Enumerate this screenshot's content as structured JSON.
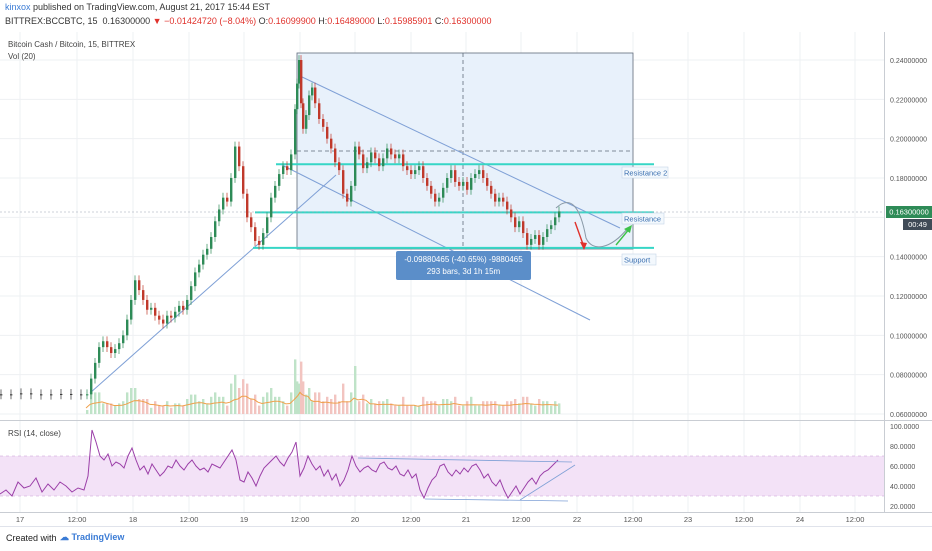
{
  "header": {
    "author": "kinxox",
    "published_text": " published on TradingView.com, August 21, 2017 15:44 EST",
    "symbol_line": "BITTREX:BCCBTC, 15",
    "last_price": "0.16300000",
    "change": "−0.01424720 (−8.04%)",
    "o_label": "O:",
    "o_value": "0.16099900",
    "h_label": "H:",
    "h_value": "0.16489000",
    "l_label": "L:",
    "l_value": "0.15985901",
    "c_label": "C:",
    "c_value": "0.16300000"
  },
  "legend": {
    "main_title": "Bitcoin Cash / Bitcoin, 15, BITTREX",
    "volume": "Vol (20)",
    "rsi": "RSI (14, close)"
  },
  "annotations": {
    "resistance2": "Resistance 2",
    "resistance": "Resistance",
    "support": "Support",
    "measure_line1": "-0.09880465 (-40.65%) -9880465",
    "measure_line2": "293 bars, 3d 1h 15m",
    "price_badge": "0.16300000",
    "time_badge": "00:49"
  },
  "footer": {
    "created_with": "Created with",
    "brand": "TradingView"
  },
  "colors": {
    "candle_up": "#2e8b57",
    "candle_down": "#c0392b",
    "level_line": "#36d6c6",
    "measure_box": "#e8f1fb",
    "badge": "#5b8ec9",
    "rsi_line": "#9b3fa8",
    "rsi_band": "#f3e2f7"
  },
  "chart_data": {
    "type": "line",
    "price_axis": {
      "ticks": [
        "0.24000000",
        "0.22000000",
        "0.20000000",
        "0.18000000",
        "0.16300000",
        "0.14000000",
        "0.12000000",
        "0.10000000",
        "0.08000000",
        "0.06000000"
      ],
      "ylim": [
        0.055,
        0.255
      ]
    },
    "rsi_axis": {
      "ticks": [
        "100.0000",
        "80.0000",
        "60.0000",
        "40.0000",
        "20.0000"
      ],
      "ylim": [
        15,
        100
      ]
    },
    "x_axis": {
      "ticks": [
        "17",
        "12:00",
        "18",
        "12:00",
        "19",
        "12:00",
        "20",
        "12:00",
        "21",
        "12:00",
        "22",
        "12:00",
        "23",
        "12:00",
        "24",
        "12:00"
      ]
    },
    "levels": {
      "resistance2": 0.187,
      "resistance": 0.1625,
      "support": 0.1445
    },
    "price_series": [
      [
        0,
        0.07
      ],
      [
        10,
        0.07
      ],
      [
        20,
        0.0705
      ],
      [
        30,
        0.07
      ],
      [
        40,
        0.0698
      ],
      [
        50,
        0.07
      ],
      [
        60,
        0.0702
      ],
      [
        70,
        0.0698
      ],
      [
        80,
        0.07
      ],
      [
        86,
        0.07
      ],
      [
        90,
        0.078
      ],
      [
        94,
        0.086
      ],
      [
        98,
        0.094
      ],
      [
        102,
        0.097
      ],
      [
        106,
        0.094
      ],
      [
        110,
        0.091
      ],
      [
        114,
        0.093
      ],
      [
        118,
        0.096
      ],
      [
        122,
        0.1
      ],
      [
        126,
        0.108
      ],
      [
        130,
        0.118
      ],
      [
        134,
        0.128
      ],
      [
        138,
        0.123
      ],
      [
        142,
        0.118
      ],
      [
        146,
        0.113
      ],
      [
        150,
        0.114
      ],
      [
        154,
        0.11
      ],
      [
        158,
        0.108
      ],
      [
        162,
        0.106
      ],
      [
        166,
        0.11
      ],
      [
        170,
        0.109
      ],
      [
        174,
        0.112
      ],
      [
        178,
        0.115
      ],
      [
        182,
        0.113
      ],
      [
        186,
        0.118
      ],
      [
        190,
        0.125
      ],
      [
        194,
        0.132
      ],
      [
        198,
        0.136
      ],
      [
        202,
        0.141
      ],
      [
        206,
        0.144
      ],
      [
        210,
        0.15
      ],
      [
        214,
        0.158
      ],
      [
        218,
        0.164
      ],
      [
        222,
        0.17
      ],
      [
        226,
        0.168
      ],
      [
        230,
        0.18
      ],
      [
        234,
        0.196
      ],
      [
        238,
        0.186
      ],
      [
        242,
        0.172
      ],
      [
        246,
        0.16
      ],
      [
        250,
        0.155
      ],
      [
        254,
        0.148
      ],
      [
        258,
        0.146
      ],
      [
        262,
        0.152
      ],
      [
        266,
        0.16
      ],
      [
        270,
        0.17
      ],
      [
        274,
        0.176
      ],
      [
        278,
        0.182
      ],
      [
        282,
        0.186
      ],
      [
        286,
        0.184
      ],
      [
        290,
        0.192
      ],
      [
        294,
        0.215
      ],
      [
        296,
        0.228
      ],
      [
        298,
        0.24
      ],
      [
        300,
        0.218
      ],
      [
        302,
        0.205
      ],
      [
        305,
        0.212
      ],
      [
        308,
        0.222
      ],
      [
        311,
        0.226
      ],
      [
        314,
        0.218
      ],
      [
        318,
        0.21
      ],
      [
        322,
        0.206
      ],
      [
        326,
        0.2
      ],
      [
        330,
        0.195
      ],
      [
        334,
        0.188
      ],
      [
        338,
        0.184
      ],
      [
        342,
        0.172
      ],
      [
        346,
        0.168
      ],
      [
        350,
        0.176
      ],
      [
        354,
        0.196
      ],
      [
        358,
        0.192
      ],
      [
        362,
        0.185
      ],
      [
        366,
        0.188
      ],
      [
        370,
        0.193
      ],
      [
        374,
        0.19
      ],
      [
        378,
        0.186
      ],
      [
        382,
        0.19
      ],
      [
        386,
        0.195
      ],
      [
        390,
        0.192
      ],
      [
        394,
        0.19
      ],
      [
        398,
        0.192
      ],
      [
        402,
        0.186
      ],
      [
        406,
        0.184
      ],
      [
        410,
        0.182
      ],
      [
        414,
        0.184
      ],
      [
        418,
        0.186
      ],
      [
        422,
        0.18
      ],
      [
        426,
        0.176
      ],
      [
        430,
        0.172
      ],
      [
        434,
        0.168
      ],
      [
        438,
        0.17
      ],
      [
        442,
        0.175
      ],
      [
        446,
        0.18
      ],
      [
        450,
        0.184
      ],
      [
        454,
        0.178
      ],
      [
        458,
        0.176
      ],
      [
        462,
        0.178
      ],
      [
        466,
        0.174
      ],
      [
        470,
        0.18
      ],
      [
        474,
        0.182
      ],
      [
        478,
        0.184
      ],
      [
        482,
        0.18
      ],
      [
        486,
        0.176
      ],
      [
        490,
        0.172
      ],
      [
        494,
        0.168
      ],
      [
        498,
        0.17
      ],
      [
        502,
        0.168
      ],
      [
        506,
        0.164
      ],
      [
        510,
        0.16
      ],
      [
        514,
        0.155
      ],
      [
        518,
        0.158
      ],
      [
        522,
        0.152
      ],
      [
        526,
        0.146
      ],
      [
        530,
        0.149
      ],
      [
        534,
        0.151
      ],
      [
        538,
        0.146
      ],
      [
        542,
        0.15
      ],
      [
        546,
        0.154
      ],
      [
        550,
        0.156
      ],
      [
        554,
        0.16
      ],
      [
        558,
        0.163
      ]
    ],
    "rsi_series": [
      [
        0,
        32
      ],
      [
        6,
        36
      ],
      [
        12,
        30
      ],
      [
        18,
        44
      ],
      [
        24,
        38
      ],
      [
        30,
        40
      ],
      [
        36,
        48
      ],
      [
        42,
        34
      ],
      [
        48,
        42
      ],
      [
        54,
        36
      ],
      [
        60,
        44
      ],
      [
        66,
        40
      ],
      [
        72,
        34
      ],
      [
        78,
        38
      ],
      [
        84,
        36
      ],
      [
        88,
        50
      ],
      [
        92,
        96
      ],
      [
        96,
        84
      ],
      [
        100,
        70
      ],
      [
        104,
        66
      ],
      [
        108,
        72
      ],
      [
        112,
        60
      ],
      [
        116,
        64
      ],
      [
        120,
        62
      ],
      [
        124,
        58
      ],
      [
        128,
        70
      ],
      [
        132,
        78
      ],
      [
        136,
        66
      ],
      [
        140,
        56
      ],
      [
        144,
        60
      ],
      [
        148,
        52
      ],
      [
        152,
        62
      ],
      [
        156,
        56
      ],
      [
        160,
        50
      ],
      [
        164,
        54
      ],
      [
        168,
        60
      ],
      [
        172,
        58
      ],
      [
        176,
        66
      ],
      [
        180,
        60
      ],
      [
        184,
        56
      ],
      [
        188,
        62
      ],
      [
        192,
        66
      ],
      [
        196,
        60
      ],
      [
        200,
        56
      ],
      [
        204,
        58
      ],
      [
        208,
        54
      ],
      [
        212,
        62
      ],
      [
        216,
        60
      ],
      [
        220,
        58
      ],
      [
        224,
        64
      ],
      [
        228,
        70
      ],
      [
        232,
        76
      ],
      [
        236,
        66
      ],
      [
        240,
        46
      ],
      [
        244,
        44
      ],
      [
        248,
        54
      ],
      [
        252,
        48
      ],
      [
        256,
        40
      ],
      [
        260,
        50
      ],
      [
        264,
        58
      ],
      [
        268,
        62
      ],
      [
        272,
        66
      ],
      [
        276,
        70
      ],
      [
        280,
        64
      ],
      [
        284,
        60
      ],
      [
        288,
        68
      ],
      [
        292,
        74
      ],
      [
        296,
        84
      ],
      [
        300,
        50
      ],
      [
        304,
        58
      ],
      [
        308,
        70
      ],
      [
        312,
        62
      ],
      [
        316,
        56
      ],
      [
        320,
        60
      ],
      [
        324,
        50
      ],
      [
        328,
        56
      ],
      [
        332,
        46
      ],
      [
        336,
        52
      ],
      [
        340,
        40
      ],
      [
        344,
        46
      ],
      [
        348,
        56
      ],
      [
        352,
        70
      ],
      [
        356,
        60
      ],
      [
        360,
        54
      ],
      [
        364,
        58
      ],
      [
        368,
        60
      ],
      [
        372,
        56
      ],
      [
        376,
        54
      ],
      [
        380,
        62
      ],
      [
        384,
        64
      ],
      [
        388,
        58
      ],
      [
        392,
        56
      ],
      [
        396,
        60
      ],
      [
        400,
        52
      ],
      [
        404,
        50
      ],
      [
        408,
        56
      ],
      [
        412,
        48
      ],
      [
        416,
        52
      ],
      [
        420,
        36
      ],
      [
        424,
        28
      ],
      [
        428,
        38
      ],
      [
        432,
        46
      ],
      [
        436,
        50
      ],
      [
        440,
        60
      ],
      [
        444,
        62
      ],
      [
        448,
        54
      ],
      [
        452,
        50
      ],
      [
        456,
        56
      ],
      [
        460,
        52
      ],
      [
        464,
        58
      ],
      [
        468,
        54
      ],
      [
        472,
        60
      ],
      [
        476,
        62
      ],
      [
        480,
        56
      ],
      [
        484,
        48
      ],
      [
        488,
        52
      ],
      [
        492,
        44
      ],
      [
        496,
        40
      ],
      [
        500,
        46
      ],
      [
        504,
        36
      ],
      [
        508,
        28
      ],
      [
        512,
        34
      ],
      [
        516,
        40
      ],
      [
        520,
        32
      ],
      [
        524,
        38
      ],
      [
        528,
        44
      ],
      [
        532,
        48
      ],
      [
        536,
        42
      ],
      [
        540,
        50
      ],
      [
        544,
        54
      ],
      [
        548,
        56
      ],
      [
        552,
        60
      ],
      [
        556,
        64
      ],
      [
        558,
        66
      ]
    ]
  }
}
